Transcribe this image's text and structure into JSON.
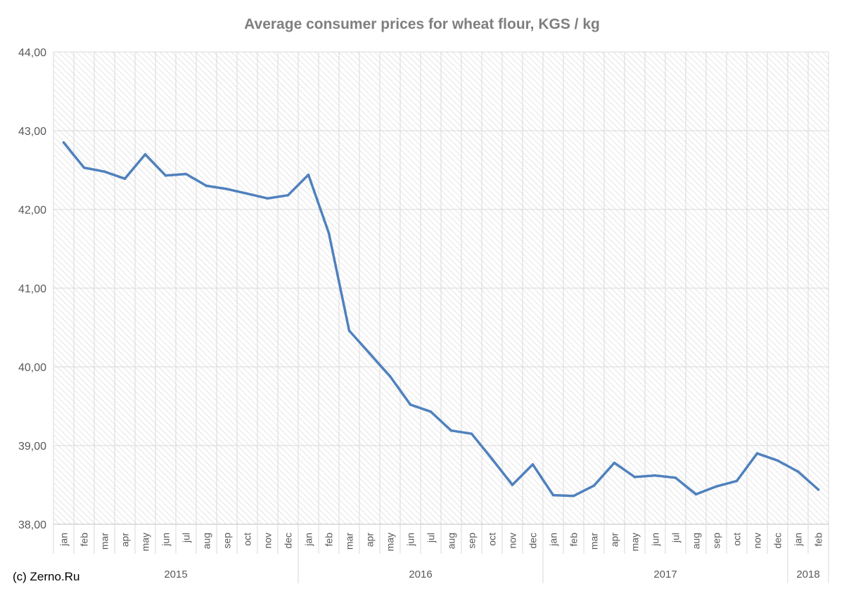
{
  "chart_data": {
    "type": "line",
    "title": "Average consumer prices for wheat flour, KGS / kg",
    "xlabel": "",
    "ylabel": "",
    "ylim": [
      38,
      44
    ],
    "grid": true,
    "legend": "none",
    "y_ticks": [
      "38,00",
      "39,00",
      "40,00",
      "41,00",
      "42,00",
      "43,00",
      "44,00"
    ],
    "categories": [
      "jan",
      "feb",
      "mar",
      "apr",
      "may",
      "jun",
      "jul",
      "aug",
      "sep",
      "oct",
      "nov",
      "dec",
      "jan",
      "feb",
      "mar",
      "apr",
      "may",
      "jun",
      "jul",
      "aug",
      "sep",
      "oct",
      "nov",
      "dec",
      "jan",
      "feb",
      "mar",
      "apr",
      "may",
      "jun",
      "jul",
      "aug",
      "sep",
      "oct",
      "nov",
      "dec",
      "jan",
      "feb"
    ],
    "year_groups": [
      {
        "label": "2015",
        "count": 12
      },
      {
        "label": "2016",
        "count": 12
      },
      {
        "label": "2017",
        "count": 12
      },
      {
        "label": "2018",
        "count": 2
      }
    ],
    "series": [
      {
        "values": [
          42.85,
          42.53,
          42.48,
          42.39,
          42.7,
          42.43,
          42.45,
          42.3,
          42.26,
          42.2,
          42.14,
          42.18,
          42.44,
          41.7,
          40.46,
          40.17,
          39.88,
          39.52,
          39.43,
          39.19,
          39.15,
          38.83,
          38.5,
          38.76,
          38.37,
          38.36,
          38.49,
          38.78,
          38.6,
          38.62,
          38.59,
          38.38,
          38.48,
          38.55,
          38.9,
          38.81,
          38.67,
          38.44
        ],
        "color": "#4f81bd"
      }
    ]
  },
  "colors": {
    "line": "#4f81bd",
    "grid": "#d9d9d9",
    "hatch": "#d4d4d4",
    "text": "#595959",
    "title": "#7f7f7f"
  },
  "credit": "(c) Zerno.Ru"
}
